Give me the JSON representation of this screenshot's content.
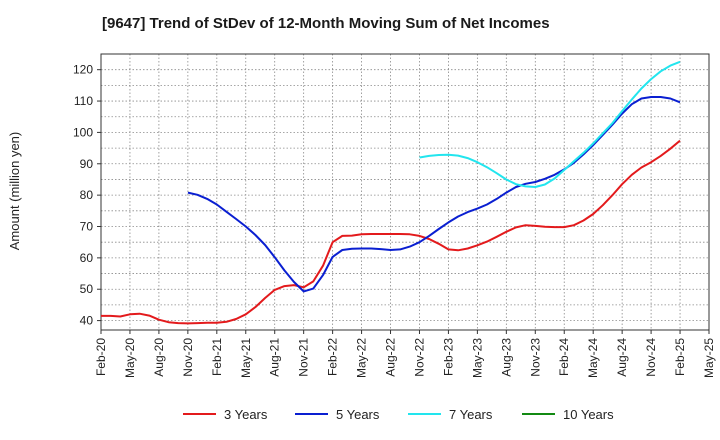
{
  "chart_data": {
    "type": "line",
    "title": "[9647]  Trend of StDev of 12-Month Moving Sum of Net Incomes",
    "ylabel": "Amount (million yen)",
    "xlabel": "",
    "x_ticks": [
      "Feb-20",
      "May-20",
      "Aug-20",
      "Nov-20",
      "Feb-21",
      "May-21",
      "Aug-21",
      "Nov-21",
      "Feb-22",
      "May-22",
      "Aug-22",
      "Nov-22",
      "Feb-23",
      "May-23",
      "Aug-23",
      "Nov-23",
      "Feb-24",
      "May-24",
      "Aug-24",
      "Nov-24",
      "Feb-25",
      "May-25"
    ],
    "y_ticks": [
      40,
      50,
      60,
      70,
      80,
      90,
      100,
      110,
      120
    ],
    "ylim": [
      37,
      125
    ],
    "xlim": [
      "Feb-20",
      "May-25"
    ],
    "grid": true,
    "legend_position": "bottom",
    "series": [
      {
        "name": "3 Years",
        "color": "#e31a1c",
        "points": [
          [
            "Feb-20",
            41.5
          ],
          [
            "Mar-20",
            41.5
          ],
          [
            "Apr-20",
            41.3
          ],
          [
            "May-20",
            42.0
          ],
          [
            "Jun-20",
            42.2
          ],
          [
            "Jul-20",
            41.6
          ],
          [
            "Aug-20",
            40.3
          ],
          [
            "Sep-20",
            39.5
          ],
          [
            "Oct-20",
            39.2
          ],
          [
            "Nov-20",
            39.1
          ],
          [
            "Dec-20",
            39.2
          ],
          [
            "Jan-21",
            39.3
          ],
          [
            "Feb-21",
            39.3
          ],
          [
            "Mar-21",
            39.6
          ],
          [
            "Apr-21",
            40.5
          ],
          [
            "May-21",
            42.0
          ],
          [
            "Jun-21",
            44.3
          ],
          [
            "Jul-21",
            47.2
          ],
          [
            "Aug-21",
            49.8
          ],
          [
            "Sep-21",
            51.0
          ],
          [
            "Oct-21",
            51.3
          ],
          [
            "Nov-21",
            50.6
          ],
          [
            "Dec-21",
            52.5
          ],
          [
            "Jan-22",
            57.5
          ],
          [
            "Feb-22",
            65.0
          ],
          [
            "Mar-22",
            67.0
          ],
          [
            "Apr-22",
            67.1
          ],
          [
            "May-22",
            67.5
          ],
          [
            "Jun-22",
            67.6
          ],
          [
            "Jul-22",
            67.6
          ],
          [
            "Aug-22",
            67.6
          ],
          [
            "Sep-22",
            67.6
          ],
          [
            "Oct-22",
            67.5
          ],
          [
            "Nov-22",
            67.0
          ],
          [
            "Dec-22",
            66.0
          ],
          [
            "Jan-23",
            64.5
          ],
          [
            "Feb-23",
            62.7
          ],
          [
            "Mar-23",
            62.4
          ],
          [
            "Apr-23",
            63.0
          ],
          [
            "May-23",
            64.0
          ],
          [
            "Jun-23",
            65.2
          ],
          [
            "Jul-23",
            66.7
          ],
          [
            "Aug-23",
            68.3
          ],
          [
            "Sep-23",
            69.7
          ],
          [
            "Oct-23",
            70.4
          ],
          [
            "Nov-23",
            70.2
          ],
          [
            "Dec-23",
            69.9
          ],
          [
            "Jan-24",
            69.8
          ],
          [
            "Feb-24",
            69.8
          ],
          [
            "Mar-24",
            70.4
          ],
          [
            "Apr-24",
            71.9
          ],
          [
            "May-24",
            74.0
          ],
          [
            "Jun-24",
            76.8
          ],
          [
            "Jul-24",
            80.0
          ],
          [
            "Aug-24",
            83.5
          ],
          [
            "Sep-24",
            86.5
          ],
          [
            "Oct-24",
            88.8
          ],
          [
            "Nov-24",
            90.5
          ],
          [
            "Dec-24",
            92.5
          ],
          [
            "Jan-25",
            94.8
          ],
          [
            "Feb-25",
            97.4
          ]
        ]
      },
      {
        "name": "5 Years",
        "color": "#0a1fd1",
        "points": [
          [
            "Nov-20",
            80.8
          ],
          [
            "Dec-20",
            80.1
          ],
          [
            "Jan-21",
            78.8
          ],
          [
            "Feb-21",
            77.0
          ],
          [
            "Mar-21",
            74.7
          ],
          [
            "Apr-21",
            72.4
          ],
          [
            "May-21",
            70.0
          ],
          [
            "Jun-21",
            67.3
          ],
          [
            "Jul-21",
            64.1
          ],
          [
            "Aug-21",
            60.2
          ],
          [
            "Sep-21",
            56.0
          ],
          [
            "Oct-21",
            52.3
          ],
          [
            "Nov-21",
            49.3
          ],
          [
            "Dec-21",
            50.2
          ],
          [
            "Jan-22",
            54.5
          ],
          [
            "Feb-22",
            60.3
          ],
          [
            "Mar-22",
            62.5
          ],
          [
            "Apr-22",
            62.9
          ],
          [
            "May-22",
            63.0
          ],
          [
            "Jun-22",
            63.0
          ],
          [
            "Jul-22",
            62.8
          ],
          [
            "Aug-22",
            62.5
          ],
          [
            "Sep-22",
            62.7
          ],
          [
            "Oct-22",
            63.6
          ],
          [
            "Nov-22",
            65.0
          ],
          [
            "Dec-22",
            67.0
          ],
          [
            "Jan-23",
            69.2
          ],
          [
            "Feb-23",
            71.3
          ],
          [
            "Mar-23",
            73.2
          ],
          [
            "Apr-23",
            74.6
          ],
          [
            "May-23",
            75.7
          ],
          [
            "Jun-23",
            77.0
          ],
          [
            "Jul-23",
            78.8
          ],
          [
            "Aug-23",
            80.8
          ],
          [
            "Sep-23",
            82.6
          ],
          [
            "Oct-23",
            83.6
          ],
          [
            "Nov-23",
            84.2
          ],
          [
            "Dec-23",
            85.2
          ],
          [
            "Jan-24",
            86.5
          ],
          [
            "Feb-24",
            88.2
          ],
          [
            "Mar-24",
            90.3
          ],
          [
            "Apr-24",
            93.0
          ],
          [
            "May-24",
            96.0
          ],
          [
            "Jun-24",
            99.2
          ],
          [
            "Jul-24",
            102.5
          ],
          [
            "Aug-24",
            106.0
          ],
          [
            "Sep-24",
            109.0
          ],
          [
            "Oct-24",
            110.8
          ],
          [
            "Nov-24",
            111.3
          ],
          [
            "Dec-24",
            111.3
          ],
          [
            "Jan-25",
            110.8
          ],
          [
            "Feb-25",
            109.6
          ]
        ]
      },
      {
        "name": "7 Years",
        "color": "#22e5ee",
        "points": [
          [
            "Nov-22",
            92.0
          ],
          [
            "Dec-22",
            92.5
          ],
          [
            "Jan-23",
            92.8
          ],
          [
            "Feb-23",
            92.9
          ],
          [
            "Mar-23",
            92.6
          ],
          [
            "Apr-23",
            91.8
          ],
          [
            "May-23",
            90.5
          ],
          [
            "Jun-23",
            88.9
          ],
          [
            "Jul-23",
            87.0
          ],
          [
            "Aug-23",
            85.0
          ],
          [
            "Sep-23",
            83.5
          ],
          [
            "Oct-23",
            82.8
          ],
          [
            "Nov-23",
            82.6
          ],
          [
            "Dec-23",
            83.4
          ],
          [
            "Jan-24",
            85.3
          ],
          [
            "Feb-24",
            88.0
          ],
          [
            "Mar-24",
            90.8
          ],
          [
            "Apr-24",
            93.5
          ],
          [
            "May-24",
            96.5
          ],
          [
            "Jun-24",
            99.7
          ],
          [
            "Jul-24",
            103.0
          ],
          [
            "Aug-24",
            106.8
          ],
          [
            "Sep-24",
            110.5
          ],
          [
            "Oct-24",
            114.0
          ],
          [
            "Nov-24",
            117.0
          ],
          [
            "Dec-24",
            119.5
          ],
          [
            "Jan-25",
            121.3
          ],
          [
            "Feb-25",
            122.5
          ]
        ]
      },
      {
        "name": "10 Years",
        "color": "#138a13",
        "points": []
      }
    ]
  }
}
